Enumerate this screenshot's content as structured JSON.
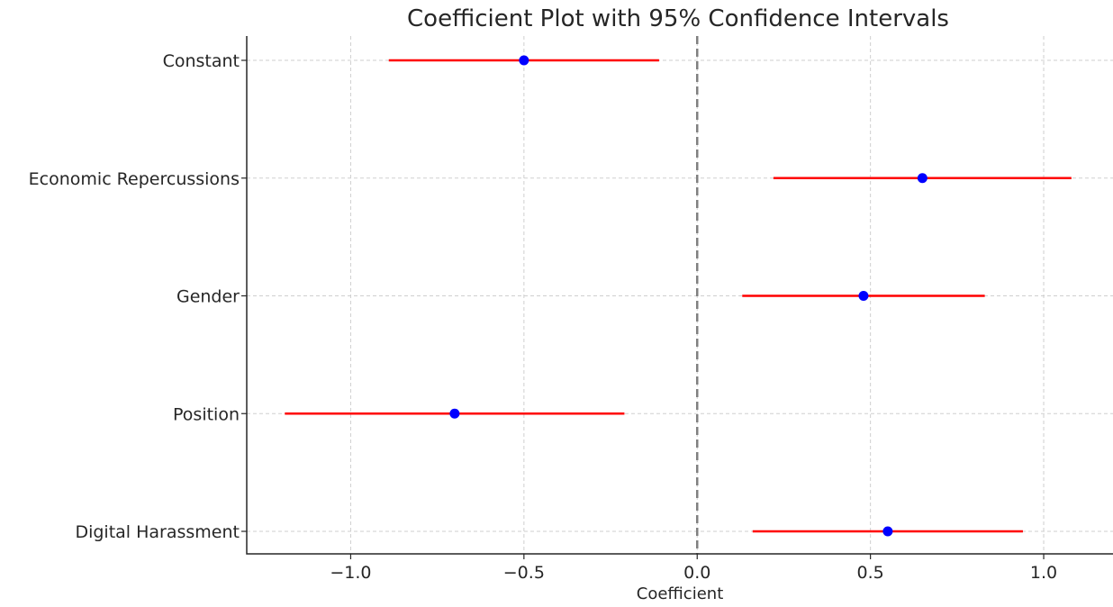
{
  "chart_data": {
    "type": "scatter",
    "title": "Coefficient Plot with 95% Confidence Intervals",
    "xlabel": "Coefficient",
    "ylabel": "",
    "xlim": [
      -1.3,
      1.2
    ],
    "xticks": [
      -1.0,
      -0.5,
      0.0,
      0.5,
      1.0
    ],
    "xtick_labels": [
      "−1.0",
      "−0.5",
      "0.0",
      "0.5",
      "1.0"
    ],
    "reference_line": {
      "x": 0.0,
      "style": "dashed",
      "color": "#808080"
    },
    "grid": true,
    "categories": [
      "Constant",
      "Economic Repercussions",
      "Gender",
      "Position",
      "Digital Harassment"
    ],
    "coefficients": [
      -0.5,
      0.65,
      0.48,
      -0.7,
      0.55
    ],
    "ci_lower": [
      -0.89,
      0.22,
      0.13,
      -1.19,
      0.16
    ],
    "ci_upper": [
      -0.11,
      1.08,
      0.83,
      -0.21,
      0.94
    ],
    "point_color": "#0000ff",
    "interval_color": "#ff0000"
  }
}
